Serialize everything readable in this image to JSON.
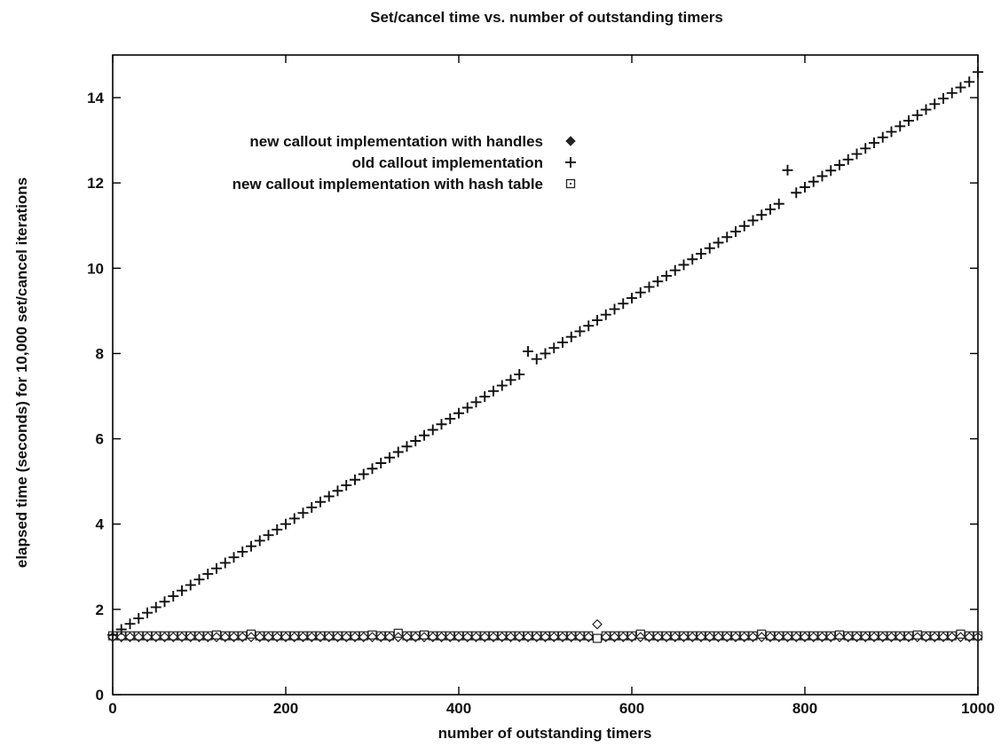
{
  "chart_data": {
    "type": "scatter",
    "title": "Set/cancel time vs. number of outstanding timers",
    "xlabel": "number of outstanding timers",
    "ylabel": "elapsed time (seconds) for 10,000 set/cancel iterations",
    "xlim": [
      0,
      1000
    ],
    "ylim": [
      0,
      15
    ],
    "x_ticks": [
      "0",
      "200",
      "400",
      "600",
      "800",
      "1000"
    ],
    "y_ticks": [
      "0",
      "2",
      "4",
      "6",
      "8",
      "10",
      "12",
      "14"
    ],
    "grid": false,
    "legend_position": "top-left",
    "series": [
      {
        "name": "new callout implementation with handles",
        "marker": "diamond",
        "x": [
          0,
          10,
          20,
          30,
          40,
          50,
          60,
          70,
          80,
          90,
          100,
          110,
          120,
          130,
          140,
          150,
          160,
          170,
          180,
          190,
          200,
          210,
          220,
          230,
          240,
          250,
          260,
          270,
          280,
          290,
          300,
          310,
          320,
          330,
          340,
          350,
          360,
          370,
          380,
          390,
          400,
          410,
          420,
          430,
          440,
          450,
          460,
          470,
          480,
          490,
          500,
          510,
          520,
          530,
          540,
          550,
          560,
          570,
          580,
          590,
          600,
          610,
          620,
          630,
          640,
          650,
          660,
          670,
          680,
          690,
          700,
          710,
          720,
          730,
          740,
          750,
          760,
          770,
          780,
          790,
          800,
          810,
          820,
          830,
          840,
          850,
          860,
          870,
          880,
          890,
          900,
          910,
          920,
          930,
          940,
          950,
          960,
          970,
          980,
          990,
          1000
        ],
        "y": [
          1.35,
          1.35,
          1.35,
          1.35,
          1.35,
          1.35,
          1.35,
          1.35,
          1.35,
          1.35,
          1.35,
          1.35,
          1.35,
          1.35,
          1.35,
          1.35,
          1.35,
          1.35,
          1.35,
          1.35,
          1.35,
          1.35,
          1.35,
          1.35,
          1.35,
          1.35,
          1.35,
          1.35,
          1.35,
          1.35,
          1.35,
          1.35,
          1.35,
          1.35,
          1.35,
          1.35,
          1.35,
          1.35,
          1.35,
          1.35,
          1.35,
          1.35,
          1.35,
          1.35,
          1.35,
          1.35,
          1.35,
          1.35,
          1.35,
          1.35,
          1.35,
          1.35,
          1.35,
          1.35,
          1.35,
          1.35,
          1.65,
          1.35,
          1.35,
          1.35,
          1.35,
          1.35,
          1.35,
          1.35,
          1.35,
          1.35,
          1.35,
          1.35,
          1.35,
          1.35,
          1.35,
          1.35,
          1.35,
          1.35,
          1.35,
          1.35,
          1.35,
          1.35,
          1.35,
          1.35,
          1.35,
          1.35,
          1.35,
          1.35,
          1.35,
          1.35,
          1.35,
          1.35,
          1.35,
          1.35,
          1.35,
          1.35,
          1.35,
          1.35,
          1.35,
          1.35,
          1.35,
          1.35,
          1.35,
          1.35,
          1.35
        ]
      },
      {
        "name": "old callout implementation",
        "marker": "plus",
        "x": [
          0,
          10,
          20,
          30,
          40,
          50,
          60,
          70,
          80,
          90,
          100,
          110,
          120,
          130,
          140,
          150,
          160,
          170,
          180,
          190,
          200,
          210,
          220,
          230,
          240,
          250,
          260,
          270,
          280,
          290,
          300,
          310,
          320,
          330,
          340,
          350,
          360,
          370,
          380,
          390,
          400,
          410,
          420,
          430,
          440,
          450,
          460,
          470,
          480,
          490,
          500,
          510,
          520,
          530,
          540,
          550,
          560,
          570,
          580,
          590,
          600,
          610,
          620,
          630,
          640,
          650,
          660,
          670,
          680,
          690,
          700,
          710,
          720,
          730,
          740,
          750,
          760,
          770,
          780,
          790,
          800,
          810,
          820,
          830,
          840,
          850,
          860,
          870,
          880,
          890,
          900,
          910,
          920,
          930,
          940,
          950,
          960,
          970,
          980,
          990,
          1000
        ],
        "y": [
          1.4,
          1.53,
          1.66,
          1.79,
          1.92,
          2.05,
          2.18,
          2.31,
          2.44,
          2.57,
          2.7,
          2.83,
          2.96,
          3.09,
          3.22,
          3.35,
          3.48,
          3.61,
          3.74,
          3.87,
          4.0,
          4.13,
          4.26,
          4.39,
          4.52,
          4.65,
          4.78,
          4.91,
          5.04,
          5.17,
          5.3,
          5.43,
          5.56,
          5.69,
          5.82,
          5.95,
          6.08,
          6.21,
          6.34,
          6.47,
          6.6,
          6.73,
          6.86,
          6.99,
          7.12,
          7.25,
          7.38,
          7.51,
          8.05,
          7.87,
          8.0,
          8.13,
          8.26,
          8.39,
          8.52,
          8.65,
          8.78,
          8.91,
          9.04,
          9.17,
          9.3,
          9.43,
          9.56,
          9.69,
          9.82,
          9.95,
          10.08,
          10.21,
          10.34,
          10.47,
          10.6,
          10.73,
          10.86,
          10.99,
          11.12,
          11.25,
          11.38,
          11.51,
          12.3,
          11.77,
          11.9,
          12.03,
          12.16,
          12.29,
          12.42,
          12.55,
          12.68,
          12.81,
          12.94,
          13.07,
          13.2,
          13.33,
          13.46,
          13.59,
          13.72,
          13.85,
          13.98,
          14.11,
          14.24,
          14.37,
          14.6
        ]
      },
      {
        "name": "new callout implementation with hash table",
        "marker": "square",
        "x": [
          0,
          10,
          20,
          30,
          40,
          50,
          60,
          70,
          80,
          90,
          100,
          110,
          120,
          130,
          140,
          150,
          160,
          170,
          180,
          190,
          200,
          210,
          220,
          230,
          240,
          250,
          260,
          270,
          280,
          290,
          300,
          310,
          320,
          330,
          340,
          350,
          360,
          370,
          380,
          390,
          400,
          410,
          420,
          430,
          440,
          450,
          460,
          470,
          480,
          490,
          500,
          510,
          520,
          530,
          540,
          550,
          560,
          570,
          580,
          590,
          600,
          610,
          620,
          630,
          640,
          650,
          660,
          670,
          680,
          690,
          700,
          710,
          720,
          730,
          740,
          750,
          760,
          770,
          780,
          790,
          800,
          810,
          820,
          830,
          840,
          850,
          860,
          870,
          880,
          890,
          900,
          910,
          920,
          930,
          940,
          950,
          960,
          970,
          980,
          990,
          1000
        ],
        "y": [
          1.38,
          1.38,
          1.38,
          1.38,
          1.38,
          1.38,
          1.38,
          1.38,
          1.38,
          1.38,
          1.38,
          1.38,
          1.4,
          1.38,
          1.38,
          1.38,
          1.42,
          1.38,
          1.38,
          1.38,
          1.38,
          1.38,
          1.38,
          1.38,
          1.38,
          1.38,
          1.38,
          1.38,
          1.38,
          1.38,
          1.4,
          1.38,
          1.38,
          1.44,
          1.38,
          1.38,
          1.4,
          1.38,
          1.38,
          1.38,
          1.38,
          1.38,
          1.38,
          1.38,
          1.38,
          1.38,
          1.38,
          1.38,
          1.38,
          1.38,
          1.38,
          1.38,
          1.38,
          1.38,
          1.38,
          1.38,
          1.32,
          1.38,
          1.38,
          1.38,
          1.38,
          1.42,
          1.38,
          1.38,
          1.38,
          1.38,
          1.38,
          1.38,
          1.38,
          1.38,
          1.38,
          1.38,
          1.38,
          1.38,
          1.38,
          1.42,
          1.38,
          1.38,
          1.38,
          1.38,
          1.38,
          1.38,
          1.38,
          1.38,
          1.4,
          1.38,
          1.38,
          1.38,
          1.38,
          1.38,
          1.38,
          1.38,
          1.38,
          1.4,
          1.38,
          1.38,
          1.38,
          1.38,
          1.42,
          1.38,
          1.38
        ]
      }
    ]
  }
}
